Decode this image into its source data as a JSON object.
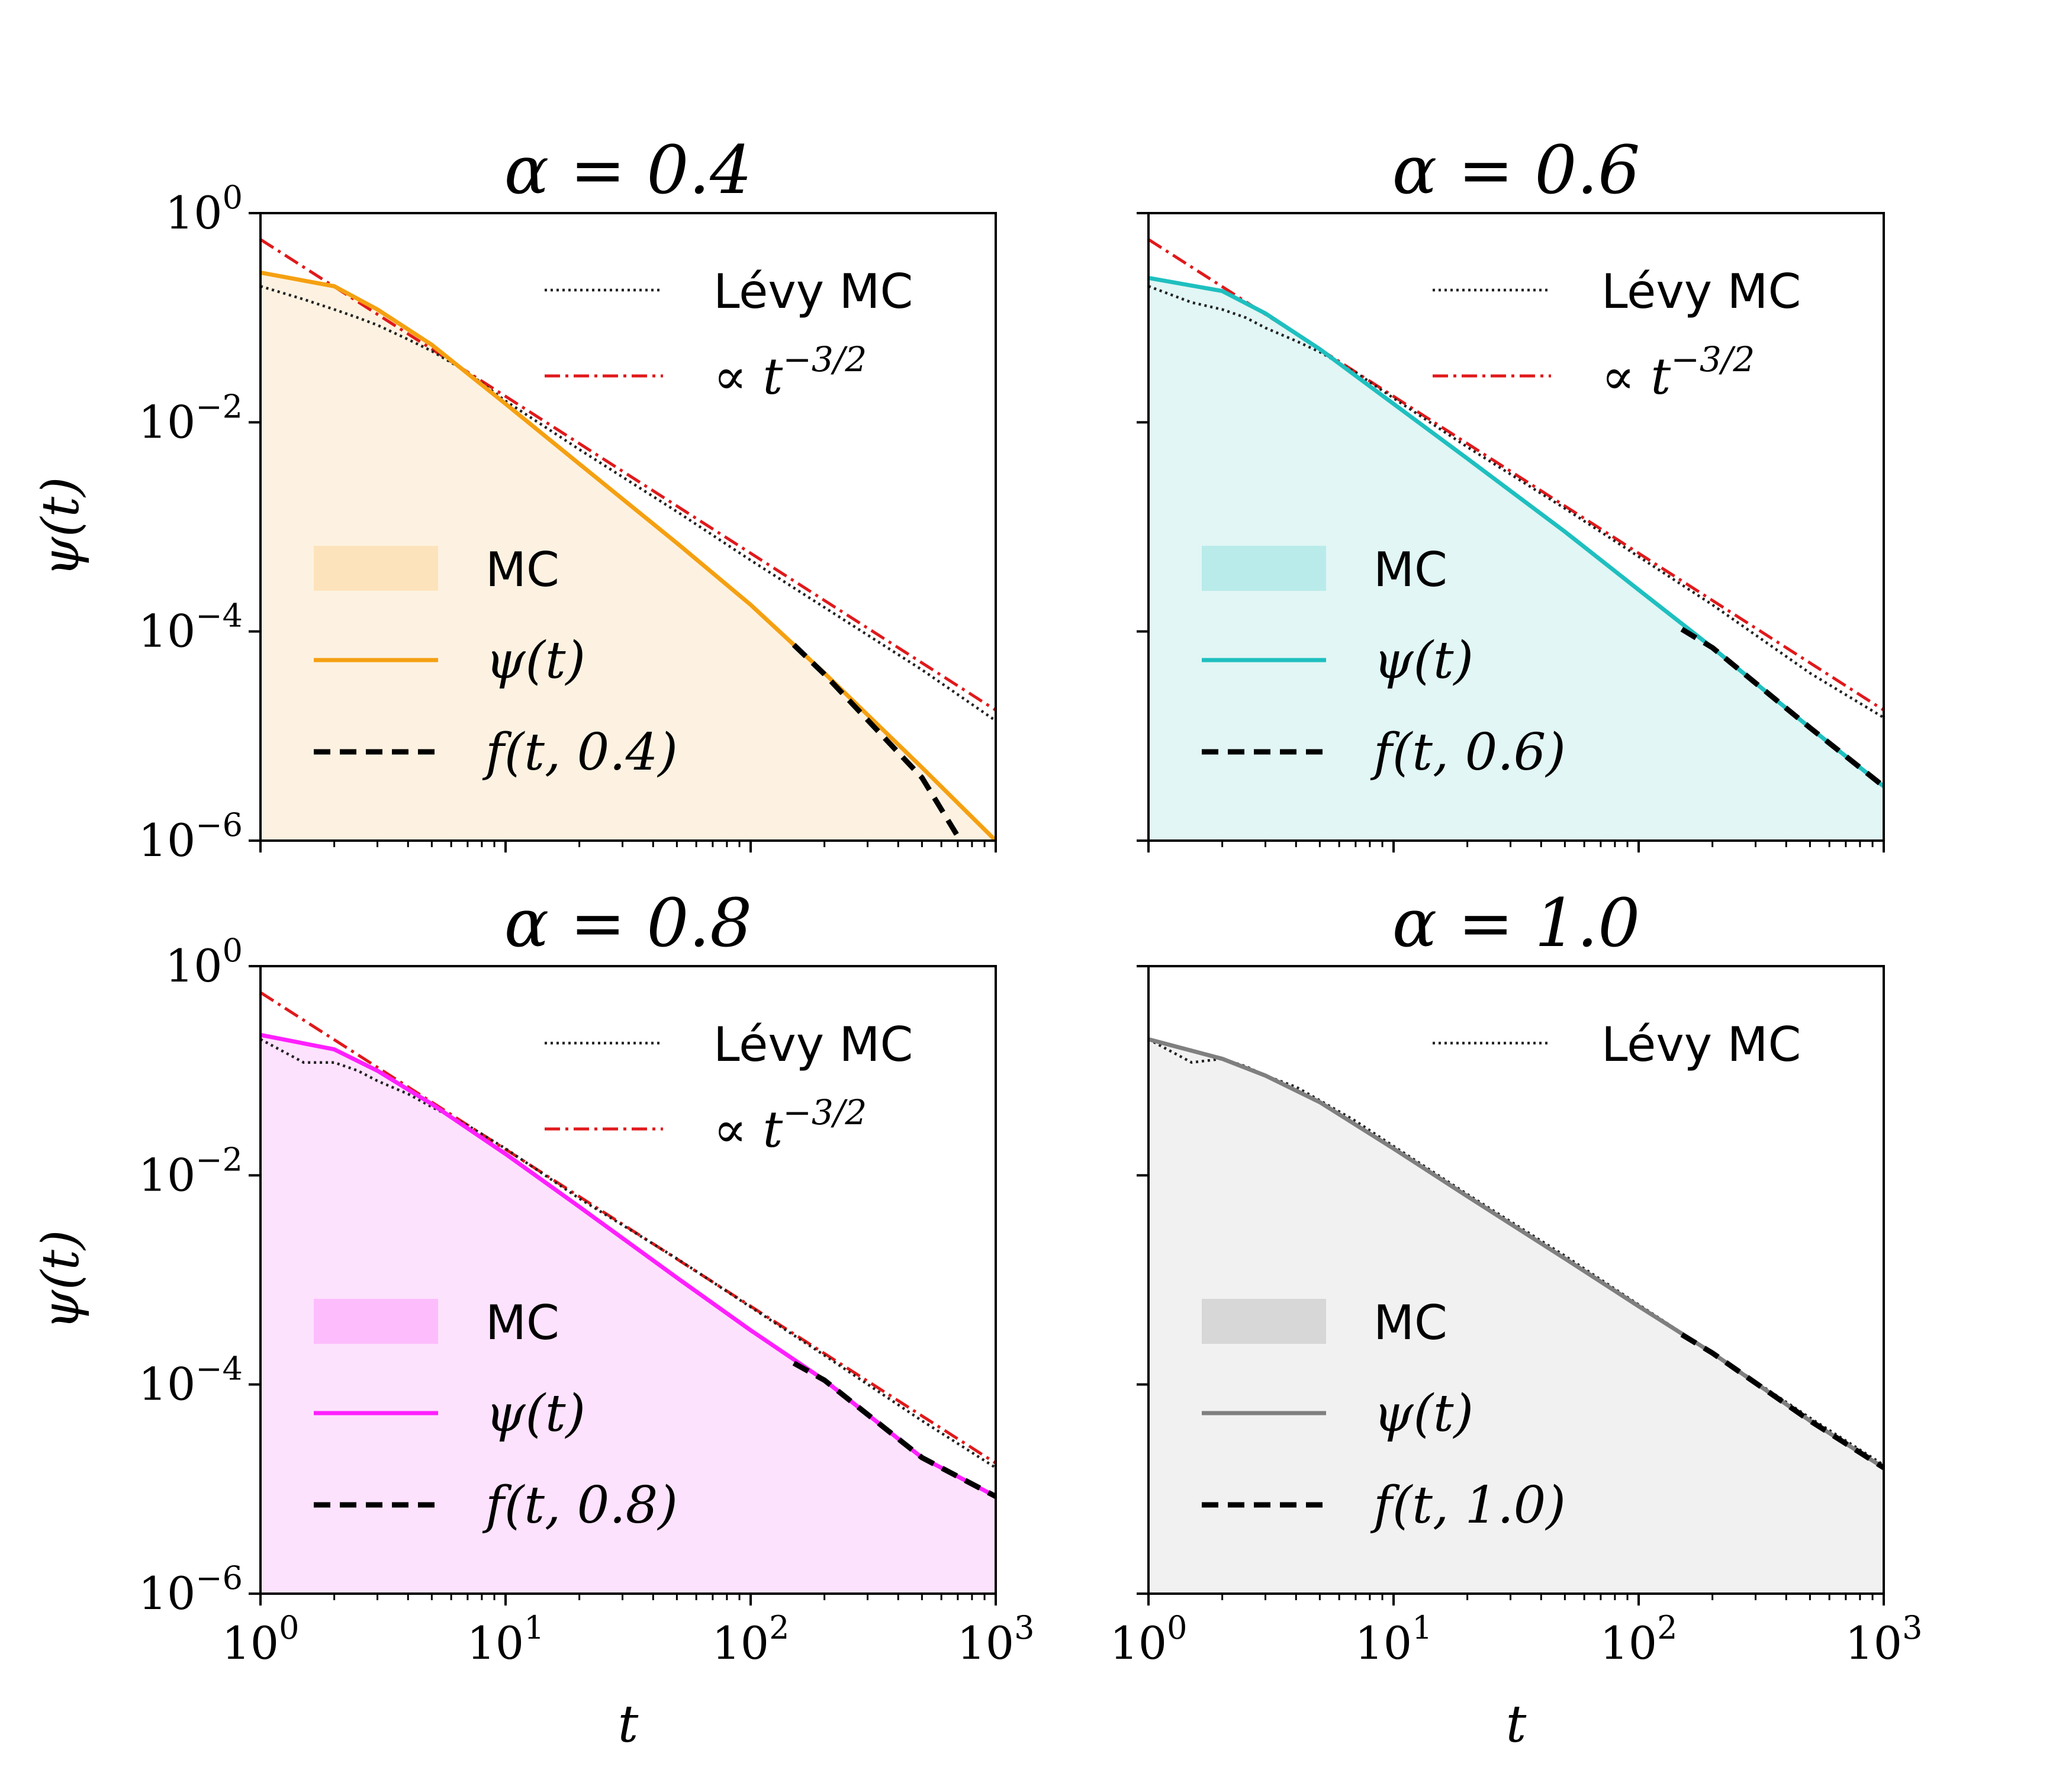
{
  "figure": {
    "ylabel": "ψ(t)",
    "xlabel": "t"
  },
  "colors": {
    "levy": "#222222",
    "powerlaw": "#e0191b",
    "fit": "#000000",
    "panels": [
      "#f5a011",
      "#1fbfbf",
      "#ff1fff",
      "#7f7f7f"
    ],
    "fills": [
      "#fdf2e1",
      "#e1f6f5",
      "#fde2fd",
      "#f1f1f1"
    ],
    "legend_patch": [
      "#fde3bc",
      "#b8ebe9",
      "#fdbdfd",
      "#d7d7d7"
    ]
  },
  "chart_data": [
    {
      "type": "line",
      "title": "α = 0.4",
      "alpha": 0.4,
      "xscale": "log",
      "yscale": "log",
      "xlim": [
        1,
        1000
      ],
      "ylim": [
        1e-06,
        1
      ],
      "xticks": [
        "10^0",
        "10^1",
        "10^2",
        "10^3"
      ],
      "yticks": [
        "10^0",
        "10^-2",
        "10^-4",
        "10^-6"
      ],
      "xlabel": "",
      "ylabel": "ψ(t)",
      "legend_upper": [
        "Lévy MC",
        "∝ t^(-3/2)"
      ],
      "legend_lower": [
        "MC",
        "ψ(t)",
        "f(t, 0.4)"
      ],
      "series": [
        {
          "name": "ψ(t)",
          "x": [
            1,
            2,
            3,
            5,
            10,
            20,
            50,
            100,
            200,
            500,
            1000
          ],
          "y": [
            0.27,
            0.2,
            0.12,
            0.055,
            0.015,
            0.004,
            0.0007,
            0.00018,
            4e-05,
            5e-06,
            1e-06
          ]
        },
        {
          "name": "Lévy MC",
          "x": [
            1,
            1.5,
            2,
            2.5,
            3,
            4,
            5,
            7,
            10,
            20,
            50,
            100,
            200,
            500,
            1000
          ],
          "y": [
            0.2,
            0.15,
            0.12,
            0.1,
            0.085,
            0.062,
            0.048,
            0.03,
            0.016,
            0.0055,
            0.0014,
            0.00048,
            0.00017,
            4.3e-05,
            1.4e-05
          ]
        },
        {
          "name": "∝ t^(-3/2)",
          "x": [
            1,
            10,
            100,
            1000
          ],
          "y": [
            0.56,
            0.0177,
            0.00056,
            1.77e-05
          ]
        },
        {
          "name": "f(t, 0.4)",
          "x": [
            150,
            200,
            500,
            700
          ],
          "y": [
            7.45e-05,
            3.9e-05,
            4e-06,
            1.1e-06
          ]
        }
      ]
    },
    {
      "type": "line",
      "title": "α = 0.6",
      "alpha": 0.6,
      "xscale": "log",
      "yscale": "log",
      "xlim": [
        1,
        1000
      ],
      "ylim": [
        1e-06,
        1
      ],
      "xticks": [
        "10^0",
        "10^1",
        "10^2",
        "10^3"
      ],
      "yticks": [
        "10^0",
        "10^-2",
        "10^-4",
        "10^-6"
      ],
      "xlabel": "",
      "ylabel": "",
      "legend_upper": [
        "Lévy MC",
        "∝ t^(-3/2)"
      ],
      "legend_lower": [
        "MC",
        "ψ(t)",
        "f(t, 0.6)"
      ],
      "series": [
        {
          "name": "ψ(t)",
          "x": [
            1,
            2,
            3,
            5,
            10,
            20,
            50,
            100,
            200,
            500,
            1000
          ],
          "y": [
            0.24,
            0.18,
            0.11,
            0.05,
            0.015,
            0.0045,
            0.0009,
            0.00025,
            7e-05,
            1.2e-05,
            3.3e-06
          ]
        },
        {
          "name": "Lévy MC",
          "x": [
            1,
            1.5,
            2,
            2.5,
            3,
            4,
            5,
            7,
            10,
            20,
            50,
            100,
            200,
            500,
            1000
          ],
          "y": [
            0.2,
            0.14,
            0.12,
            0.1,
            0.08,
            0.06,
            0.047,
            0.03,
            0.017,
            0.0058,
            0.0015,
            0.00052,
            0.00018,
            4e-05,
            1.5e-05
          ]
        },
        {
          "name": "∝ t^(-3/2)",
          "x": [
            1,
            10,
            100,
            1000
          ],
          "y": [
            0.56,
            0.0177,
            0.00056,
            1.77e-05
          ]
        },
        {
          "name": "f(t, 0.6)",
          "x": [
            150,
            200,
            500,
            1000
          ],
          "y": [
            0.000105,
            7e-05,
            1.2e-05,
            3.3e-06
          ]
        }
      ]
    },
    {
      "type": "line",
      "title": "α = 0.8",
      "alpha": 0.8,
      "xscale": "log",
      "yscale": "log",
      "xlim": [
        1,
        1000
      ],
      "ylim": [
        1e-06,
        1
      ],
      "xticks": [
        "10^0",
        "10^1",
        "10^2",
        "10^3"
      ],
      "yticks": [
        "10^0",
        "10^-2",
        "10^-4",
        "10^-6"
      ],
      "xlabel": "t",
      "ylabel": "ψ(t)",
      "legend_upper": [
        "Lévy MC",
        "∝ t^(-3/2)"
      ],
      "legend_lower": [
        "MC",
        "ψ(t)",
        "f(t, 0.8)"
      ],
      "series": [
        {
          "name": "ψ(t)",
          "x": [
            1,
            2,
            3,
            5,
            10,
            20,
            50,
            100,
            200,
            500,
            1000
          ],
          "y": [
            0.22,
            0.16,
            0.1,
            0.048,
            0.016,
            0.005,
            0.00105,
            0.00033,
            0.00011,
            2e-05,
            8.5e-06
          ]
        },
        {
          "name": "Lévy MC",
          "x": [
            1,
            1.5,
            2,
            2.5,
            3,
            4,
            5,
            7,
            10,
            20,
            50,
            100,
            200,
            500,
            1000
          ],
          "y": [
            0.2,
            0.12,
            0.12,
            0.1,
            0.08,
            0.06,
            0.045,
            0.03,
            0.018,
            0.006,
            0.0016,
            0.00055,
            0.00019,
            4.5e-05,
            1.6e-05
          ]
        },
        {
          "name": "∝ t^(-3/2)",
          "x": [
            1,
            10,
            100,
            1000
          ],
          "y": [
            0.56,
            0.0177,
            0.00056,
            1.77e-05
          ]
        },
        {
          "name": "f(t, 0.8)",
          "x": [
            150,
            200,
            500,
            1000
          ],
          "y": [
            0.00016,
            0.00011,
            2e-05,
            8.5e-06
          ]
        }
      ]
    },
    {
      "type": "line",
      "title": "α = 1.0",
      "alpha": 1.0,
      "xscale": "log",
      "yscale": "log",
      "xlim": [
        1,
        1000
      ],
      "ylim": [
        1e-06,
        1
      ],
      "xticks": [
        "10^0",
        "10^1",
        "10^2",
        "10^3"
      ],
      "yticks": [
        "10^0",
        "10^-2",
        "10^-4",
        "10^-6"
      ],
      "xlabel": "t",
      "ylabel": "",
      "legend_upper": [
        "Lévy MC"
      ],
      "legend_lower": [
        "MC",
        "ψ(t)",
        "f(t, 1.0)"
      ],
      "series": [
        {
          "name": "ψ(t)",
          "x": [
            1,
            2,
            3,
            5,
            10,
            20,
            50,
            100,
            200,
            500,
            1000
          ],
          "y": [
            0.2,
            0.13,
            0.09,
            0.05,
            0.018,
            0.0063,
            0.0016,
            0.00056,
            0.0002,
            4.5e-05,
            1.6e-05
          ]
        },
        {
          "name": "Lévy MC",
          "x": [
            1,
            1.5,
            2,
            2.5,
            3,
            4,
            5,
            7,
            10,
            20,
            50,
            100,
            200,
            500,
            1000
          ],
          "y": [
            0.2,
            0.12,
            0.13,
            0.11,
            0.09,
            0.07,
            0.052,
            0.033,
            0.019,
            0.0066,
            0.0017,
            0.00058,
            0.0002,
            4.8e-05,
            1.7e-05
          ]
        },
        {
          "name": "f(t, 1.0)",
          "x": [
            150,
            200,
            500,
            1000
          ],
          "y": [
            0.0003,
            0.0002,
            4.5e-05,
            1.6e-05
          ]
        }
      ]
    }
  ]
}
